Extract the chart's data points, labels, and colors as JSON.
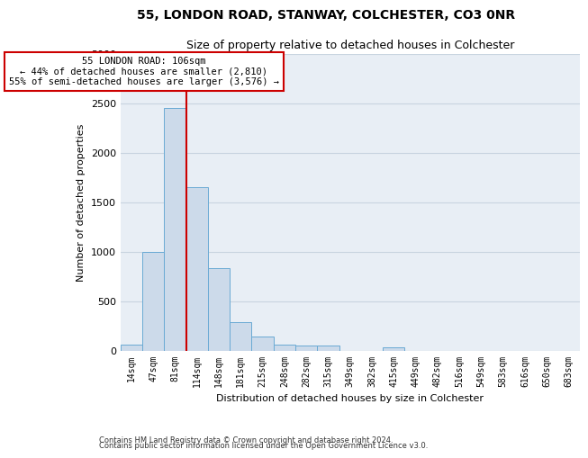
{
  "title1": "55, LONDON ROAD, STANWAY, COLCHESTER, CO3 0NR",
  "title2": "Size of property relative to detached houses in Colchester",
  "xlabel": "Distribution of detached houses by size in Colchester",
  "ylabel": "Number of detached properties",
  "footnote1": "Contains HM Land Registry data © Crown copyright and database right 2024.",
  "footnote2": "Contains public sector information licensed under the Open Government Licence v3.0.",
  "bin_labels": [
    "14sqm",
    "47sqm",
    "81sqm",
    "114sqm",
    "148sqm",
    "181sqm",
    "215sqm",
    "248sqm",
    "282sqm",
    "315sqm",
    "349sqm",
    "382sqm",
    "415sqm",
    "449sqm",
    "482sqm",
    "516sqm",
    "549sqm",
    "583sqm",
    "616sqm",
    "650sqm",
    "683sqm"
  ],
  "bar_heights": [
    55,
    1000,
    2450,
    1650,
    830,
    290,
    145,
    60,
    50,
    50,
    0,
    0,
    30,
    0,
    0,
    0,
    0,
    0,
    0,
    0,
    0
  ],
  "bar_color": "#ccdaea",
  "bar_edge_color": "#6aaad4",
  "property_label": "55 LONDON ROAD: 106sqm",
  "line_annotation1": "← 44% of detached houses are smaller (2,810)",
  "line_annotation2": "55% of semi-detached houses are larger (3,576) →",
  "vline_color": "#cc0000",
  "annotation_box_color": "#ffffff",
  "annotation_box_edge": "#cc0000",
  "ylim": [
    0,
    3000
  ],
  "yticks": [
    0,
    500,
    1000,
    1500,
    2000,
    2500,
    3000
  ],
  "vline_x": 2.5,
  "ax_bg_color": "#e8eef5",
  "grid_color": "#c8d4e0"
}
